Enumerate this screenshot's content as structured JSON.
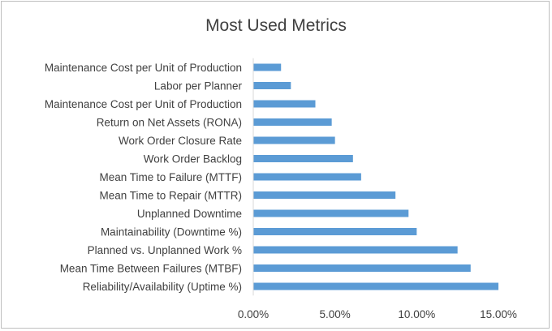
{
  "chart_data": {
    "type": "bar",
    "orientation": "horizontal",
    "title": "Most Used Metrics",
    "xlabel": "",
    "ylabel": "",
    "categories": [
      "Maintenance Cost per Unit of Production",
      "Labor per Planner",
      "Maintenance Cost per Unit of Production",
      "Return on Net Assets (RONA)",
      "Work Order Closure Rate",
      "Work Order Backlog",
      "Mean Time to Failure (MTTF)",
      "Mean Time to Repair (MTTR)",
      "Unplanned Downtime",
      "Maintainability (Downtime %)",
      "Planned vs. Unplanned Work %",
      "Mean Time Between Failures (MTBF)",
      "Reliability/Availability  (Uptime %)"
    ],
    "values": [
      1.7,
      2.3,
      3.8,
      4.8,
      5.0,
      6.1,
      6.6,
      8.7,
      9.5,
      10.0,
      12.5,
      13.3,
      15.0
    ],
    "xlim": [
      0,
      15
    ],
    "ticks": [
      0,
      5,
      10,
      15
    ],
    "tick_labels": [
      "0.00%",
      "5.00%",
      "10.00%",
      "15.00%"
    ],
    "grid": false,
    "legend": "none",
    "bar_color": "#5b9bd5"
  }
}
